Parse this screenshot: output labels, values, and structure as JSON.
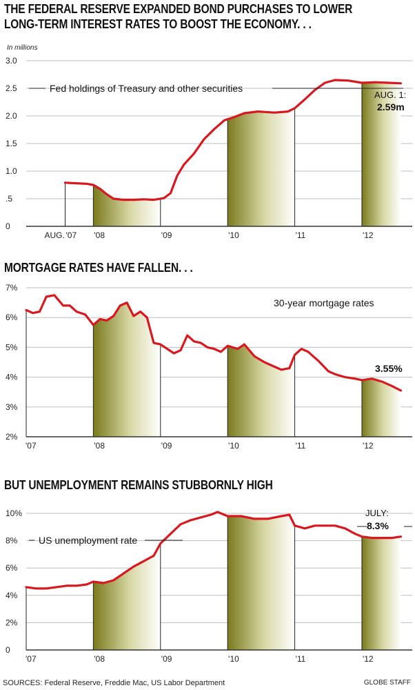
{
  "headline_1_line1": "THE FEDERAL RESERVE EXPANDED BOND PURCHASES TO LOWER",
  "headline_1_line2": "LONG-TERM INTEREST RATES TO BOOST THE ECONOMY. . .",
  "headline_2": "MORTGAGE RATES HAVE FALLEN. . .",
  "headline_3": "BUT UNEMPLOYMENT REMAINS STUBBORNLY HIGH",
  "sources": "SOURCES: Federal Reserve, Freddie Mac, US Labor Department",
  "credit": "GLOBE STAFF",
  "colors": {
    "line": "#d7191f",
    "shade_dark": "#7a7a1e",
    "shade_light": "#ffffff",
    "grid": "#bdbdbd",
    "axis": "#333333"
  },
  "chart_data": [
    {
      "id": "fed-holdings",
      "type": "line",
      "unit_label": "In millions",
      "ylim": [
        0,
        3.0
      ],
      "yticks": [
        0,
        0.5,
        1.0,
        1.5,
        2.0,
        2.5,
        3.0
      ],
      "ytick_labels": [
        "0",
        ".5",
        "1.0",
        "1.5",
        "2.0",
        "2.5",
        "3.0"
      ],
      "xlim": [
        2007.58,
        2012.75
      ],
      "xticks": [
        {
          "x": 2007.58,
          "prefix": "AUG.",
          "label": "'07"
        },
        {
          "x": 2008,
          "prefix": "",
          "label": "'08"
        },
        {
          "x": 2009,
          "prefix": "",
          "label": "'09"
        },
        {
          "x": 2010,
          "prefix": "",
          "label": "'10"
        },
        {
          "x": 2011,
          "prefix": "",
          "label": "'11"
        },
        {
          "x": 2012,
          "prefix": "",
          "label": "'12"
        }
      ],
      "shaded_years": [
        [
          2008,
          2009
        ],
        [
          2010,
          2011
        ],
        [
          2012,
          2012.75
        ]
      ],
      "grid": true,
      "series": [
        {
          "name": "Fed holdings of Treasury and other securities",
          "x": [
            2007.58,
            2007.75,
            2007.9,
            2008.0,
            2008.1,
            2008.2,
            2008.3,
            2008.45,
            2008.6,
            2008.75,
            2008.9,
            2009.05,
            2009.15,
            2009.25,
            2009.35,
            2009.5,
            2009.65,
            2009.8,
            2009.95,
            2010.1,
            2010.25,
            2010.45,
            2010.7,
            2010.9,
            2011.0,
            2011.15,
            2011.3,
            2011.45,
            2011.6,
            2011.8,
            2012.0,
            2012.2,
            2012.4,
            2012.58
          ],
          "y": [
            0.79,
            0.78,
            0.77,
            0.75,
            0.68,
            0.58,
            0.5,
            0.48,
            0.48,
            0.49,
            0.48,
            0.51,
            0.6,
            0.92,
            1.12,
            1.32,
            1.58,
            1.76,
            1.92,
            1.98,
            2.05,
            2.08,
            2.06,
            2.08,
            2.14,
            2.3,
            2.47,
            2.6,
            2.65,
            2.64,
            2.6,
            2.61,
            2.6,
            2.59
          ]
        }
      ],
      "annotation_prefix": "AUG. 1:",
      "annotation_value": "2.59m"
    },
    {
      "id": "mortgage-rates",
      "type": "line",
      "ylim": [
        2,
        7
      ],
      "yticks": [
        2,
        3,
        4,
        5,
        6,
        7
      ],
      "ytick_labels": [
        "2%",
        "3%",
        "4%",
        "5%",
        "6%",
        "7%"
      ],
      "xlim": [
        2007,
        2012.75
      ],
      "xticks": [
        {
          "x": 2007,
          "prefix": "",
          "label": "'07"
        },
        {
          "x": 2008,
          "prefix": "",
          "label": "'08"
        },
        {
          "x": 2009,
          "prefix": "",
          "label": "'09"
        },
        {
          "x": 2010,
          "prefix": "",
          "label": "'10"
        },
        {
          "x": 2011,
          "prefix": "",
          "label": "'11"
        },
        {
          "x": 2012,
          "prefix": "",
          "label": "'12"
        }
      ],
      "shaded_years": [
        [
          2008,
          2009
        ],
        [
          2010,
          2011
        ],
        [
          2012,
          2012.75
        ]
      ],
      "grid": true,
      "series": [
        {
          "name": "30-year mortgage rates",
          "x": [
            2007.0,
            2007.1,
            2007.2,
            2007.3,
            2007.42,
            2007.55,
            2007.65,
            2007.75,
            2007.88,
            2008.0,
            2008.1,
            2008.2,
            2008.3,
            2008.4,
            2008.5,
            2008.6,
            2008.7,
            2008.8,
            2008.9,
            2009.0,
            2009.1,
            2009.2,
            2009.3,
            2009.4,
            2009.5,
            2009.6,
            2009.7,
            2009.8,
            2009.9,
            2010.0,
            2010.15,
            2010.25,
            2010.4,
            2010.55,
            2010.7,
            2010.8,
            2010.92,
            2011.0,
            2011.1,
            2011.2,
            2011.35,
            2011.5,
            2011.6,
            2011.75,
            2011.9,
            2012.0,
            2012.15,
            2012.3,
            2012.45,
            2012.58
          ],
          "y": [
            6.25,
            6.15,
            6.2,
            6.7,
            6.75,
            6.4,
            6.4,
            6.2,
            6.1,
            5.75,
            5.95,
            5.9,
            6.05,
            6.4,
            6.5,
            6.05,
            6.2,
            6.0,
            5.15,
            5.1,
            4.95,
            4.8,
            4.9,
            5.4,
            5.2,
            5.15,
            5.0,
            4.95,
            4.85,
            5.05,
            4.95,
            5.1,
            4.7,
            4.5,
            4.35,
            4.25,
            4.3,
            4.75,
            4.95,
            4.85,
            4.55,
            4.2,
            4.1,
            4.0,
            3.95,
            3.9,
            3.95,
            3.85,
            3.7,
            3.55
          ]
        }
      ],
      "annotation_prefix": "",
      "annotation_value": "3.55%"
    },
    {
      "id": "unemployment",
      "type": "line",
      "ylim": [
        0,
        10
      ],
      "yticks": [
        0,
        2,
        4,
        6,
        8,
        10
      ],
      "ytick_labels": [
        "0",
        "2%",
        "4%",
        "6%",
        "8%",
        "10%"
      ],
      "xlim": [
        2007,
        2012.75
      ],
      "xticks": [
        {
          "x": 2007,
          "prefix": "",
          "label": "'07"
        },
        {
          "x": 2008,
          "prefix": "",
          "label": "'08"
        },
        {
          "x": 2009,
          "prefix": "",
          "label": "'09"
        },
        {
          "x": 2010,
          "prefix": "",
          "label": "'10"
        },
        {
          "x": 2011,
          "prefix": "",
          "label": "'11"
        },
        {
          "x": 2012,
          "prefix": "",
          "label": "'12"
        }
      ],
      "shaded_years": [
        [
          2008,
          2009
        ],
        [
          2010,
          2011
        ],
        [
          2012,
          2012.75
        ]
      ],
      "grid": true,
      "series": [
        {
          "name": "US unemployment rate",
          "x": [
            2007.0,
            2007.15,
            2007.3,
            2007.45,
            2007.6,
            2007.75,
            2007.9,
            2008.0,
            2008.15,
            2008.3,
            2008.45,
            2008.6,
            2008.75,
            2008.9,
            2009.0,
            2009.15,
            2009.3,
            2009.45,
            2009.6,
            2009.75,
            2009.85,
            2010.0,
            2010.2,
            2010.4,
            2010.6,
            2010.8,
            2010.92,
            2011.0,
            2011.15,
            2011.3,
            2011.45,
            2011.6,
            2011.75,
            2011.9,
            2012.0,
            2012.15,
            2012.3,
            2012.45,
            2012.58
          ],
          "y": [
            4.6,
            4.5,
            4.5,
            4.6,
            4.7,
            4.7,
            4.8,
            5.0,
            4.9,
            5.1,
            5.6,
            6.1,
            6.5,
            6.9,
            7.8,
            8.5,
            9.2,
            9.5,
            9.7,
            9.9,
            10.1,
            9.8,
            9.8,
            9.6,
            9.6,
            9.8,
            9.9,
            9.1,
            8.9,
            9.1,
            9.1,
            9.1,
            8.9,
            8.5,
            8.3,
            8.2,
            8.2,
            8.2,
            8.3
          ]
        }
      ],
      "annotation_prefix": "JULY:",
      "annotation_value": "8.3%"
    }
  ]
}
